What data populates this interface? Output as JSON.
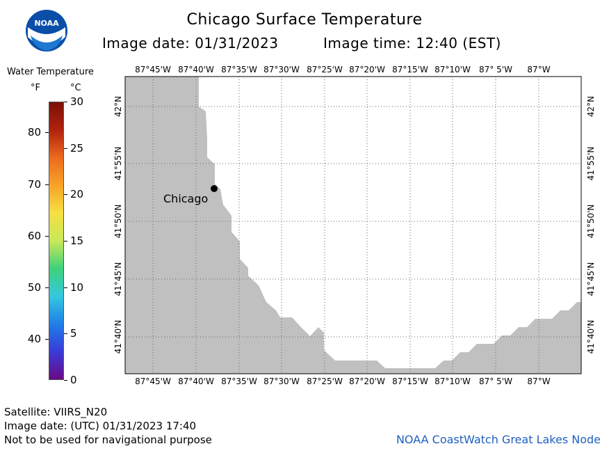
{
  "header": {
    "title": "Chicago Surface Temperature",
    "image_date_label": "Image date: 01/31/2023",
    "image_time_label": "Image time: 12:40 (EST)"
  },
  "logo": {
    "text": "NOAA",
    "icon": "noaa-logo-icon"
  },
  "legend": {
    "title": "Water Temperature",
    "unit_f": "°F",
    "unit_c": "°C",
    "f_ticks": [
      "80",
      "70",
      "60",
      "50",
      "40"
    ],
    "c_ticks": [
      "30",
      "25",
      "20",
      "15",
      "10",
      "5",
      "0"
    ],
    "colors": [
      "#6a0a86",
      "#3a3ad8",
      "#1f7fe8",
      "#35c8e0",
      "#3fd17a",
      "#c9e85a",
      "#f5e042",
      "#f7a328",
      "#ec6a1e",
      "#b0220e",
      "#7a1008"
    ]
  },
  "map": {
    "top_lon_labels": [
      "87°45'W",
      "87°40'W",
      "87°35'W",
      "87°30'W",
      "87°25'W",
      "87°20'W",
      "87°15'W",
      "87°10'W",
      "87° 5'W",
      "87°W"
    ],
    "bottom_lon_labels": [
      "87°45'W",
      "87°40'W",
      "87°35'W",
      "87°30'W",
      "87°25'W",
      "87°20'W",
      "87°15'W",
      "87°10'W",
      "87° 5'W",
      "87°W"
    ],
    "lat_labels": [
      "42°N",
      "41°55'N",
      "41°50'N",
      "41°45'N",
      "41°40'N"
    ],
    "city": {
      "name": "Chicago"
    },
    "land_color": "#c0c0c0",
    "water_color": "#ffffff"
  },
  "footer": {
    "satellite": "Satellite: VIIRS_N20",
    "image_date_utc": "Image date: (UTC) 01/31/2023  17:40",
    "disclaimer": "Not to be used for navigational purpose",
    "credit": "NOAA CoastWatch Great Lakes Node"
  }
}
